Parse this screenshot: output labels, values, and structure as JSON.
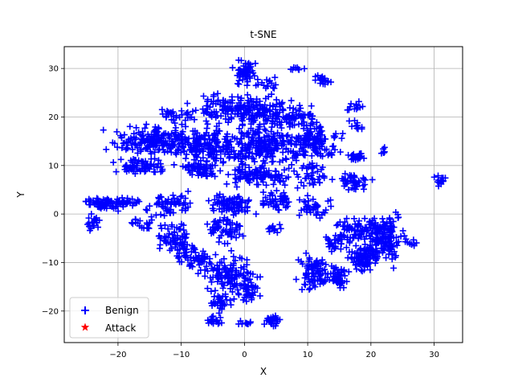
{
  "chart_data": {
    "type": "scatter",
    "title": "t-SNE",
    "xlabel": "X",
    "ylabel": "Y",
    "xlim": [
      -28.5,
      34.5
    ],
    "ylim": [
      -26.5,
      34.5
    ],
    "xticks": [
      -20,
      -10,
      0,
      10,
      20,
      30
    ],
    "yticks": [
      -20,
      -10,
      0,
      10,
      20,
      30
    ],
    "xtick_labels": [
      "−20",
      "−10",
      "0",
      "10",
      "20",
      "30"
    ],
    "ytick_labels": [
      "−20",
      "−10",
      "0",
      "10",
      "20",
      "30"
    ],
    "grid": true,
    "legend_position": "lower-left",
    "series": [
      {
        "name": "Benign",
        "marker": "plus",
        "color": "#0000ff",
        "clusters": [
          {
            "cx": 0,
            "cy": 29,
            "rx": 1.8,
            "ry": 2.2,
            "n": 55
          },
          {
            "cx": 4,
            "cy": 27,
            "rx": 1.5,
            "ry": 1,
            "n": 15
          },
          {
            "cx": 8,
            "cy": 30,
            "rx": 1,
            "ry": 0.5,
            "n": 8
          },
          {
            "cx": 12.5,
            "cy": 27.5,
            "rx": 1.2,
            "ry": 0.8,
            "n": 20
          },
          {
            "cx": -4,
            "cy": 22,
            "rx": 4,
            "ry": 2.5,
            "n": 80
          },
          {
            "cx": 2,
            "cy": 21,
            "rx": 4,
            "ry": 3,
            "n": 140
          },
          {
            "cx": 8,
            "cy": 20,
            "rx": 3,
            "ry": 2,
            "n": 60
          },
          {
            "cx": -11,
            "cy": 20,
            "rx": 2.5,
            "ry": 1.5,
            "n": 30
          },
          {
            "cx": 17.5,
            "cy": 22,
            "rx": 1.5,
            "ry": 1,
            "n": 12
          },
          {
            "cx": 17.5,
            "cy": 18,
            "rx": 1.2,
            "ry": 1,
            "n": 10
          },
          {
            "cx": 22,
            "cy": 13,
            "rx": 0.6,
            "ry": 0.6,
            "n": 6
          },
          {
            "cx": -14,
            "cy": 15,
            "rx": 6,
            "ry": 2.5,
            "n": 180
          },
          {
            "cx": -6,
            "cy": 14,
            "rx": 4,
            "ry": 3,
            "n": 160
          },
          {
            "cx": 3,
            "cy": 14,
            "rx": 5,
            "ry": 3,
            "n": 200
          },
          {
            "cx": 11,
            "cy": 15,
            "rx": 3.5,
            "ry": 3,
            "n": 130
          },
          {
            "cx": 17.5,
            "cy": 12,
            "rx": 1,
            "ry": 0.8,
            "n": 25
          },
          {
            "cx": -16,
            "cy": 10,
            "rx": 3.5,
            "ry": 1.5,
            "n": 70
          },
          {
            "cx": -7,
            "cy": 9,
            "rx": 3,
            "ry": 1.5,
            "n": 60
          },
          {
            "cx": 2,
            "cy": 8,
            "rx": 4,
            "ry": 2,
            "n": 110
          },
          {
            "cx": 11,
            "cy": 8,
            "rx": 2.5,
            "ry": 2,
            "n": 40
          },
          {
            "cx": 17.5,
            "cy": 6.5,
            "rx": 2,
            "ry": 1.2,
            "n": 30
          },
          {
            "cx": -22,
            "cy": 2,
            "rx": 2.5,
            "ry": 1.2,
            "n": 70
          },
          {
            "cx": -18,
            "cy": 2.5,
            "rx": 1.5,
            "ry": 0.8,
            "n": 20
          },
          {
            "cx": -12,
            "cy": 2,
            "rx": 3,
            "ry": 2,
            "n": 60
          },
          {
            "cx": -2,
            "cy": 2,
            "rx": 3,
            "ry": 2,
            "n": 80
          },
          {
            "cx": 5,
            "cy": 3,
            "rx": 2,
            "ry": 2,
            "n": 50
          },
          {
            "cx": 11,
            "cy": 1,
            "rx": 2.5,
            "ry": 2,
            "n": 40
          },
          {
            "cx": -23.5,
            "cy": -1.5,
            "rx": 1.2,
            "ry": 1.5,
            "n": 20
          },
          {
            "cx": -16,
            "cy": -2,
            "rx": 2,
            "ry": 1,
            "n": 20
          },
          {
            "cx": -11,
            "cy": -5,
            "rx": 2.5,
            "ry": 3,
            "n": 70
          },
          {
            "cx": -3,
            "cy": -3,
            "rx": 2.5,
            "ry": 2.5,
            "n": 60
          },
          {
            "cx": 4.5,
            "cy": -3,
            "rx": 1.2,
            "ry": 1,
            "n": 12
          },
          {
            "cx": -8,
            "cy": -9,
            "rx": 2.5,
            "ry": 2,
            "n": 50
          },
          {
            "cx": -3,
            "cy": -12,
            "rx": 3,
            "ry": 3,
            "n": 90
          },
          {
            "cx": 0,
            "cy": -15,
            "rx": 2,
            "ry": 3,
            "n": 60
          },
          {
            "cx": -4,
            "cy": -18,
            "rx": 1.5,
            "ry": 2,
            "n": 35
          },
          {
            "cx": -5,
            "cy": -22,
            "rx": 1.5,
            "ry": 0.8,
            "n": 15
          },
          {
            "cx": 0,
            "cy": -22.5,
            "rx": 1.5,
            "ry": 0.5,
            "n": 10
          },
          {
            "cx": 4.5,
            "cy": -22,
            "rx": 1,
            "ry": 1,
            "n": 25
          },
          {
            "cx": 18,
            "cy": -3,
            "rx": 3,
            "ry": 2,
            "n": 70
          },
          {
            "cx": 14.5,
            "cy": -6,
            "rx": 1.5,
            "ry": 1.5,
            "n": 35
          },
          {
            "cx": 22.5,
            "cy": -5,
            "rx": 2.5,
            "ry": 4.5,
            "n": 150
          },
          {
            "cx": 19,
            "cy": -9,
            "rx": 2,
            "ry": 2.5,
            "n": 90
          },
          {
            "cx": 11,
            "cy": -12,
            "rx": 2,
            "ry": 3,
            "n": 80
          },
          {
            "cx": 15,
            "cy": -13,
            "rx": 2,
            "ry": 2,
            "n": 50
          },
          {
            "cx": 26.5,
            "cy": -6,
            "rx": 0.7,
            "ry": 0.7,
            "n": 8
          },
          {
            "cx": 31,
            "cy": 7,
            "rx": 0.8,
            "ry": 1,
            "n": 15
          },
          {
            "cx": 17,
            "cy": 7,
            "rx": 1.5,
            "ry": 1,
            "n": 15
          }
        ]
      },
      {
        "name": "Attack",
        "marker": "star",
        "color": "#ff0000",
        "points": []
      }
    ]
  }
}
